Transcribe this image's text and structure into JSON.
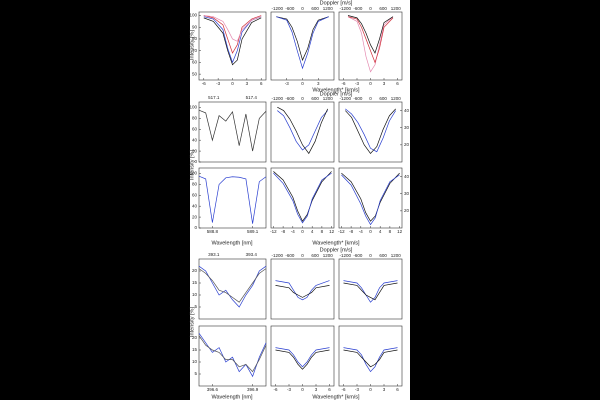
{
  "labels": {
    "intensity": "Intensity [%]",
    "wavelength_nm": "Wavelength [nm]",
    "wavelength_kms": "Wavelength* [km/s]",
    "doppler": "Doppler [m/s]"
  },
  "doppler_ticks": [
    -1200,
    -600,
    0,
    600,
    1200
  ],
  "chart_data": [
    {
      "type": "line",
      "x": [
        -6,
        -4,
        -2,
        -1,
        0,
        1,
        2,
        4,
        6
      ],
      "xlim": [
        -7,
        7
      ],
      "ylim": [
        45,
        103
      ],
      "xticks": [
        -6,
        -3,
        0,
        3,
        6
      ],
      "yticks": [
        50,
        60,
        70,
        80,
        90,
        100
      ],
      "series": [
        {
          "color": "#2a3fd0",
          "values": [
            99,
            97,
            88,
            72,
            60,
            70,
            86,
            96,
            99
          ]
        },
        {
          "color": "#d0303a",
          "values": [
            100,
            98,
            92,
            80,
            68,
            75,
            90,
            97,
            100
          ]
        },
        {
          "color": "#e48ab0",
          "values": [
            100,
            99,
            95,
            88,
            80,
            78,
            88,
            96,
            99
          ]
        },
        {
          "color": "#111111",
          "values": [
            98,
            95,
            85,
            70,
            58,
            62,
            80,
            94,
            98
          ]
        }
      ]
    },
    {
      "type": "line",
      "x": [
        -5,
        -3,
        -2,
        -1,
        0,
        1,
        2,
        3,
        5
      ],
      "xlim": [
        -6,
        6
      ],
      "ylim": [
        45,
        103
      ],
      "xticks": [
        -3,
        0,
        3
      ],
      "series": [
        {
          "color": "#111111",
          "values": [
            99,
            97,
            90,
            78,
            62,
            72,
            88,
            96,
            99
          ]
        },
        {
          "color": "#2a3fd0",
          "values": [
            99,
            96,
            86,
            70,
            55,
            68,
            85,
            95,
            99
          ]
        }
      ]
    },
    {
      "type": "line",
      "x": [
        -5,
        -3,
        -2,
        -1,
        0,
        1,
        2,
        3,
        5
      ],
      "xlim": [
        -7,
        7
      ],
      "ylim": [
        45,
        103
      ],
      "xticks": [
        -6,
        -3,
        0,
        3,
        6
      ],
      "series": [
        {
          "color": "#e48ab0",
          "values": [
            99,
            95,
            85,
            65,
            52,
            58,
            75,
            92,
            99
          ]
        },
        {
          "color": "#d0303a",
          "values": [
            99,
            97,
            90,
            80,
            70,
            60,
            72,
            90,
            98
          ]
        },
        {
          "color": "#111111",
          "values": [
            100,
            98,
            93,
            85,
            75,
            68,
            80,
            94,
            99
          ]
        }
      ]
    },
    {
      "type": "line",
      "x": [
        517.0,
        517.05,
        517.1,
        517.15,
        517.2,
        517.25,
        517.3,
        517.35,
        517.4,
        517.45,
        517.5
      ],
      "xlim": [
        517.0,
        517.5
      ],
      "ylim": [
        0,
        110
      ],
      "yticks": [
        0,
        20,
        40,
        60,
        80,
        100
      ],
      "annotations": [
        "517.1",
        "517.4"
      ],
      "series": [
        {
          "color": "#333333",
          "values": [
            95,
            90,
            40,
            85,
            75,
            92,
            30,
            88,
            20,
            80,
            93
          ]
        }
      ]
    },
    {
      "type": "line",
      "x": [
        -4,
        -3,
        -2,
        -1,
        0,
        1,
        2,
        3,
        4
      ],
      "xlim": [
        -5,
        5
      ],
      "ylim": [
        10,
        45
      ],
      "series": [
        {
          "color": "#2a3fd0",
          "values": [
            40,
            37,
            30,
            22,
            17,
            20,
            28,
            36,
            40
          ]
        },
        {
          "color": "#111111",
          "values": [
            42,
            40,
            35,
            28,
            20,
            15,
            22,
            33,
            41
          ]
        }
      ]
    },
    {
      "type": "line",
      "x": [
        -4,
        -3,
        -2,
        -1,
        0,
        1,
        2,
        3,
        4
      ],
      "xlim": [
        -5,
        5
      ],
      "ylim": [
        10,
        45
      ],
      "yticks": [
        20,
        30,
        40
      ],
      "series": [
        {
          "color": "#2a3fd0",
          "values": [
            41,
            38,
            33,
            26,
            18,
            16,
            24,
            34,
            40
          ]
        },
        {
          "color": "#111111",
          "values": [
            40,
            36,
            28,
            20,
            15,
            19,
            29,
            37,
            41
          ]
        }
      ]
    },
    {
      "type": "line",
      "x": [
        588.7,
        588.75,
        588.8,
        588.85,
        588.9,
        588.95,
        589.0,
        589.05,
        589.1,
        589.15,
        589.2
      ],
      "xlim": [
        588.7,
        589.2
      ],
      "ylim": [
        0,
        110
      ],
      "xticks": [
        588.8,
        589.1
      ],
      "yticks": [
        0,
        20,
        40,
        60,
        80,
        100
      ],
      "series": [
        {
          "color": "#2a3fd0",
          "values": [
            95,
            90,
            10,
            80,
            92,
            94,
            93,
            90,
            8,
            85,
            94
          ]
        }
      ]
    },
    {
      "type": "line",
      "x": [
        -12,
        -8,
        -4,
        -2,
        0,
        2,
        4,
        8,
        12
      ],
      "xlim": [
        -13,
        13
      ],
      "ylim": [
        10,
        45
      ],
      "xticks": [
        -12,
        -8,
        -4,
        0,
        4,
        8,
        12
      ],
      "series": [
        {
          "color": "#111111",
          "values": [
            43,
            38,
            28,
            20,
            14,
            18,
            26,
            37,
            43
          ]
        },
        {
          "color": "#2a3fd0",
          "values": [
            42,
            36,
            26,
            18,
            13,
            17,
            27,
            38,
            42
          ]
        }
      ]
    },
    {
      "type": "line",
      "x": [
        -12,
        -8,
        -4,
        -2,
        0,
        2,
        4,
        8,
        12
      ],
      "xlim": [
        -13,
        13
      ],
      "ylim": [
        10,
        45
      ],
      "xticks": [
        -12,
        -8,
        -4,
        0,
        4,
        8,
        12
      ],
      "yticks": [
        20,
        30,
        40
      ],
      "series": [
        {
          "color": "#111111",
          "values": [
            42,
            37,
            27,
            19,
            14,
            17,
            25,
            36,
            42
          ]
        },
        {
          "color": "#2a3fd0",
          "values": [
            41,
            35,
            24,
            17,
            12,
            16,
            26,
            37,
            41
          ]
        }
      ]
    },
    {
      "type": "line",
      "x": [
        393.0,
        393.05,
        393.1,
        393.15,
        393.2,
        393.25,
        393.3,
        393.35,
        393.4,
        393.45,
        393.5
      ],
      "xlim": [
        393.0,
        393.5
      ],
      "ylim": [
        0,
        25
      ],
      "yticks": [
        5,
        10,
        15,
        20
      ],
      "annotations": [
        "393.1",
        "393.4"
      ],
      "series": [
        {
          "color": "#2a3fd0",
          "values": [
            22,
            20,
            15,
            10,
            12,
            8,
            5,
            10,
            14,
            20,
            22
          ]
        },
        {
          "color": "#555555",
          "values": [
            21,
            19,
            16,
            12,
            11,
            9,
            7,
            11,
            15,
            19,
            21
          ]
        }
      ]
    },
    {
      "type": "line",
      "x": [
        -6,
        -3,
        -2,
        -1,
        0,
        1,
        2,
        3,
        6
      ],
      "xlim": [
        -7,
        7
      ],
      "ylim": [
        0,
        25
      ],
      "series": [
        {
          "color": "#2a3fd0",
          "values": [
            16,
            15,
            12,
            9,
            8,
            9,
            12,
            14,
            16
          ]
        },
        {
          "color": "#111111",
          "values": [
            14,
            13,
            11,
            10,
            9,
            10,
            11,
            13,
            14
          ]
        }
      ]
    },
    {
      "type": "line",
      "x": [
        -6,
        -3,
        -2,
        -1,
        0,
        1,
        2,
        3,
        6
      ],
      "xlim": [
        -7,
        7
      ],
      "ylim": [
        0,
        25
      ],
      "series": [
        {
          "color": "#2a3fd0",
          "values": [
            16,
            15,
            13,
            10,
            7,
            9,
            13,
            15,
            16
          ]
        },
        {
          "color": "#111111",
          "values": [
            15,
            14,
            12,
            10,
            9,
            8,
            11,
            14,
            15
          ]
        }
      ]
    },
    {
      "type": "line",
      "x": [
        396.5,
        396.55,
        396.6,
        396.65,
        396.7,
        396.75,
        396.8,
        396.85,
        396.9,
        396.95,
        397.0
      ],
      "xlim": [
        396.5,
        397.0
      ],
      "ylim": [
        0,
        25
      ],
      "xticks": [
        396.6,
        396.9
      ],
      "yticks": [
        5,
        10,
        15,
        20
      ],
      "series": [
        {
          "color": "#2a3fd0",
          "values": [
            22,
            18,
            14,
            16,
            10,
            12,
            6,
            9,
            4,
            12,
            18
          ]
        },
        {
          "color": "#555555",
          "values": [
            21,
            17,
            15,
            14,
            11,
            11,
            8,
            9,
            6,
            11,
            17
          ]
        }
      ]
    },
    {
      "type": "line",
      "x": [
        -6,
        -3,
        -2,
        -1,
        0,
        1,
        2,
        3,
        6
      ],
      "xlim": [
        -7,
        7
      ],
      "ylim": [
        0,
        25
      ],
      "xticks": [
        -6,
        -3,
        0,
        3,
        6
      ],
      "series": [
        {
          "color": "#111111",
          "values": [
            15,
            14,
            12,
            9,
            7,
            9,
            12,
            14,
            15
          ]
        },
        {
          "color": "#2a3fd0",
          "values": [
            16,
            15,
            13,
            10,
            8,
            10,
            13,
            15,
            16
          ]
        }
      ]
    },
    {
      "type": "line",
      "x": [
        -6,
        -3,
        -2,
        -1,
        0,
        1,
        2,
        3,
        6
      ],
      "xlim": [
        -7,
        7
      ],
      "ylim": [
        0,
        25
      ],
      "xticks": [
        -6,
        -3,
        0,
        3,
        6
      ],
      "series": [
        {
          "color": "#2a3fd0",
          "values": [
            16,
            15,
            13,
            9,
            6,
            8,
            12,
            15,
            16
          ]
        },
        {
          "color": "#111111",
          "values": [
            15,
            14,
            12,
            10,
            8,
            9,
            11,
            14,
            15
          ]
        }
      ]
    }
  ]
}
